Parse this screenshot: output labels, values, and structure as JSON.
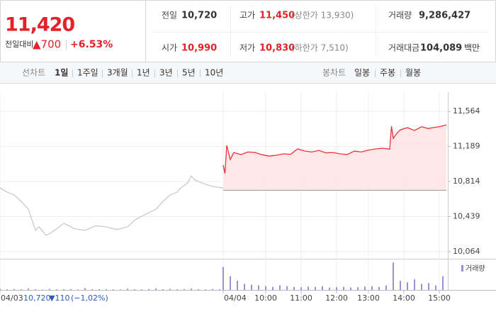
{
  "price": {
    "current": "11,420",
    "change_label": "전일대비",
    "change": "▲700",
    "rate": "+6.53%"
  },
  "info": {
    "rows": [
      [
        {
          "label": "전일",
          "value": "10,720"
        },
        {
          "label": "고가",
          "value": "11,450",
          "note": "(상한가 13,930)"
        },
        {
          "label": "거래량",
          "value": "9,286,427"
        }
      ],
      [
        {
          "label": "시가",
          "value": "10,990"
        },
        {
          "label": "저가",
          "value": "10,830",
          "note": "(하한가 7,510)"
        },
        {
          "label": "거래대금",
          "value": "104,089",
          "unit": "백만"
        }
      ]
    ]
  },
  "tabs": {
    "line_label": "선차트",
    "line_periods": [
      "1일",
      "1주일",
      "3개월",
      "1년",
      "3년",
      "5년",
      "10년"
    ],
    "candle_label": "봉차트",
    "candle_periods": [
      "일봉",
      "주봉",
      "월봉"
    ]
  },
  "prev": {
    "close": "10,720",
    "change": "▼110",
    "rate": "(−1,02%)"
  },
  "chart_data": {
    "type": "line",
    "xlim": [
      0,
      126
    ],
    "xticks": [
      {
        "value": 0,
        "label": "04/03"
      },
      {
        "value": 63,
        "label": "04/04"
      },
      {
        "value": 75,
        "label": "10:00"
      },
      {
        "value": 85,
        "label": "11:00"
      },
      {
        "value": 95,
        "label": "12:00"
      },
      {
        "value": 104,
        "label": "13:00"
      },
      {
        "value": 114,
        "label": "14:00"
      },
      {
        "value": 124,
        "label": "15:00"
      }
    ],
    "ylim": [
      10010,
      11770
    ],
    "yticks": [
      {
        "value": 11564,
        "label": "11,564"
      },
      {
        "value": 11189,
        "label": "11,189"
      },
      {
        "value": 10814,
        "label": "10,814"
      },
      {
        "value": 10439,
        "label": "10,439"
      },
      {
        "value": 10064,
        "label": "10,064"
      }
    ],
    "grid": true,
    "reference_line": 10720,
    "series": [
      {
        "color": "#c9c9c9",
        "x": [
          0,
          2,
          4,
          6,
          8,
          10,
          11,
          13,
          15,
          18,
          21,
          24,
          27,
          30,
          33,
          36,
          38,
          40,
          42,
          44,
          46,
          48,
          50,
          51,
          53,
          54,
          55,
          57,
          60,
          63
        ],
        "values": [
          10745,
          10700,
          10670,
          10600,
          10518,
          10291,
          10330,
          10238,
          10280,
          10366,
          10310,
          10291,
          10340,
          10328,
          10300,
          10328,
          10400,
          10442,
          10480,
          10518,
          10600,
          10670,
          10700,
          10745,
          10800,
          10874,
          10830,
          10798,
          10761,
          10745
        ]
      },
      {
        "color": "#f0313b",
        "fill": "#fde3e3",
        "x": [
          63,
          63.5,
          64,
          65,
          66,
          68,
          70,
          72,
          74,
          76,
          78,
          80,
          82,
          84,
          86,
          88,
          90,
          92,
          94,
          96,
          98,
          100,
          102,
          104,
          106,
          108,
          110,
          110.5,
          111,
          112,
          113,
          115,
          117,
          118,
          119,
          121,
          122,
          124,
          125,
          126
        ],
        "values": [
          10990,
          10900,
          11200,
          11050,
          11124,
          11102,
          11130,
          11124,
          11100,
          11086,
          11095,
          11110,
          11105,
          11162,
          11140,
          11130,
          11147,
          11120,
          11124,
          11110,
          11102,
          11140,
          11130,
          11150,
          11162,
          11170,
          11160,
          11405,
          11276,
          11330,
          11367,
          11390,
          11360,
          11380,
          11400,
          11380,
          11390,
          11400,
          11410,
          11420
        ]
      }
    ],
    "volume": {
      "name": "거래량",
      "color": "#a08fd0",
      "vlim": [
        0,
        200000
      ],
      "x": [
        0,
        2,
        4,
        6,
        8,
        10,
        12,
        14,
        16,
        18,
        20,
        22,
        24,
        26,
        28,
        30,
        32,
        34,
        36,
        38,
        40,
        42,
        44,
        46,
        48,
        50,
        52,
        54,
        56,
        58,
        60,
        62,
        63,
        65,
        67,
        69,
        71,
        73,
        75,
        77,
        79,
        81,
        83,
        85,
        87,
        89,
        91,
        93,
        95,
        97,
        99,
        101,
        103,
        105,
        107,
        109,
        111,
        113,
        115,
        117,
        119,
        121,
        123,
        125
      ],
      "values": [
        8000,
        5000,
        6000,
        4000,
        9000,
        5000,
        3000,
        7000,
        4000,
        5000,
        6000,
        3000,
        12000,
        4000,
        5000,
        6000,
        4000,
        3000,
        8000,
        5000,
        4000,
        6000,
        10000,
        5000,
        7000,
        4000,
        6000,
        9000,
        5000,
        4000,
        6000,
        5000,
        150000,
        90000,
        60000,
        40000,
        35000,
        30000,
        25000,
        20000,
        30000,
        25000,
        20000,
        18000,
        22000,
        20000,
        25000,
        15000,
        18000,
        20000,
        16000,
        18000,
        22000,
        25000,
        20000,
        30000,
        180000,
        60000,
        50000,
        70000,
        40000,
        45000,
        30000,
        90000
      ]
    }
  }
}
